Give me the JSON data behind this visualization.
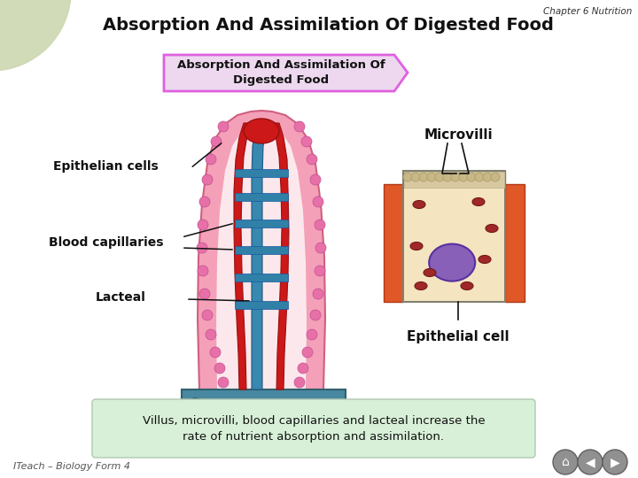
{
  "title": "Absorption And Assimilation Of Digested Food",
  "chapter_label": "Chapter 6 Nutrition",
  "subtitle_box_text": "Absorption And Assimilation Of\nDigested Food",
  "label_epithelian": "Epithelian cells",
  "label_blood": "Blood capillaries",
  "label_lacteal": "Lacteal",
  "label_microvilli": "Microvilli",
  "label_epithelial_cell": "Epithelial cell",
  "footer_text": "ITeach – Biology Form 4",
  "bottom_text": "Villus, microvilli, blood capillaries and lacteal increase the\nrate of nutrient absorption and assimilation.",
  "bg_color": "#dde8cc",
  "slide_bg": "#ffffff",
  "subtitle_box_fill": "#edd8f0",
  "subtitle_box_edge": "#e060e0",
  "bottom_box_fill": "#d8f0d8",
  "bottom_box_edge": "#b0c8b0",
  "corner_circle_color": "#ccd8b0",
  "corner_cross_color": "#b0c090"
}
